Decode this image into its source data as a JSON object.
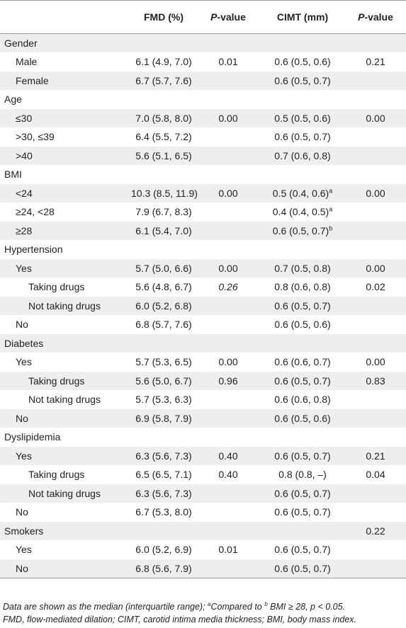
{
  "header": {
    "col0": "",
    "fmd": "FMD (%)",
    "p_fmd_italic": "P",
    "p_fmd_rest": "-value",
    "cimt": "CIMT (mm)",
    "p_cimt_italic": "P",
    "p_cimt_rest": "-value"
  },
  "rows": [
    {
      "label": "Gender",
      "level": 0,
      "fmd": "",
      "p1": "",
      "cimt": "",
      "cimt_sup": "",
      "p2": ""
    },
    {
      "label": "Male",
      "level": 1,
      "fmd": "6.1 (4.9, 7.0)",
      "p1": "0.01",
      "cimt": "0.6 (0.5, 0.6)",
      "cimt_sup": "",
      "p2": "0.21"
    },
    {
      "label": "Female",
      "level": 1,
      "fmd": "6.7 (5.7, 7.6)",
      "p1": "",
      "cimt": "0.6 (0.5, 0.7)",
      "cimt_sup": "",
      "p2": ""
    },
    {
      "label": "Age",
      "level": 0,
      "fmd": "",
      "p1": "",
      "cimt": "",
      "cimt_sup": "",
      "p2": ""
    },
    {
      "label": "≤30",
      "level": 1,
      "fmd": "7.0 (5.8, 8.0)",
      "p1": "0.00",
      "cimt": "0.5 (0.5, 0.6)",
      "cimt_sup": "",
      "p2": "0.00"
    },
    {
      "label": ">30, ≤39",
      "level": 1,
      "fmd": "6.4 (5.5, 7.2)",
      "p1": "",
      "cimt": "0.6 (0.5, 0.7)",
      "cimt_sup": "",
      "p2": ""
    },
    {
      "label": ">40",
      "level": 1,
      "fmd": "5.6 (5.1, 6.5)",
      "p1": "",
      "cimt": "0.7 (0.6, 0.8)",
      "cimt_sup": "",
      "p2": ""
    },
    {
      "label": "BMI",
      "level": 0,
      "fmd": "",
      "p1": "",
      "cimt": "",
      "cimt_sup": "",
      "p2": ""
    },
    {
      "label": "<24",
      "level": 1,
      "fmd": "10.3 (8.5, 11.9)",
      "p1": "0.00",
      "cimt": "0.5 (0.4, 0.6)",
      "cimt_sup": "a",
      "p2": "0.00"
    },
    {
      "label": "≥24, <28",
      "level": 1,
      "fmd": "7.9 (6.7, 8.3)",
      "p1": "",
      "cimt": "0.4 (0.4, 0.5)",
      "cimt_sup": "a",
      "p2": ""
    },
    {
      "label": "≥28",
      "level": 1,
      "fmd": "6.1 (5.4, 7.0)",
      "p1": "",
      "cimt": "0.6 (0.5, 0.7)",
      "cimt_sup": "b",
      "p2": ""
    },
    {
      "label": "Hypertension",
      "level": 0,
      "fmd": "",
      "p1": "",
      "cimt": "",
      "cimt_sup": "",
      "p2": ""
    },
    {
      "label": "Yes",
      "level": 1,
      "fmd": "5.7 (5.0, 6.6)",
      "p1": "0.00",
      "cimt": "0.7 (0.5, 0.8)",
      "cimt_sup": "",
      "p2": "0.00"
    },
    {
      "label": "Taking drugs",
      "level": 2,
      "fmd": "5.6 (4.8, 6.7)",
      "p1": "0.26",
      "p1_italic": true,
      "cimt": "0.8 (0.6, 0.8)",
      "cimt_sup": "",
      "p2": "0.02"
    },
    {
      "label": "Not taking drugs",
      "level": 2,
      "fmd": "6.0 (5.2, 6.8)",
      "p1": "",
      "cimt": "0.6 (0.5, 0.7)",
      "cimt_sup": "",
      "p2": ""
    },
    {
      "label": "No",
      "level": 1,
      "fmd": "6.8 (5.7, 7.6)",
      "p1": "",
      "cimt": "0.6 (0.5, 0.6)",
      "cimt_sup": "",
      "p2": ""
    },
    {
      "label": "Diabetes",
      "level": 0,
      "fmd": "",
      "p1": "",
      "cimt": "",
      "cimt_sup": "",
      "p2": ""
    },
    {
      "label": "Yes",
      "level": 1,
      "fmd": "5.7 (5.3, 6.5)",
      "p1": "0.00",
      "cimt": "0.6 (0.6, 0.7)",
      "cimt_sup": "",
      "p2": "0.00"
    },
    {
      "label": "Taking drugs",
      "level": 2,
      "fmd": "5.6 (5.0, 6.7)",
      "p1": "0.96",
      "cimt": "0.6 (0.5, 0.7)",
      "cimt_sup": "",
      "p2": "0.83"
    },
    {
      "label": "Not taking drugs",
      "level": 2,
      "fmd": "5.7 (5.3, 6.3)",
      "p1": "",
      "cimt": "0.6 (0.6, 0.8)",
      "cimt_sup": "",
      "p2": ""
    },
    {
      "label": "No",
      "level": 1,
      "fmd": "6.9 (5.8, 7.9)",
      "p1": "",
      "cimt": "0.6 (0.5, 0.6)",
      "cimt_sup": "",
      "p2": ""
    },
    {
      "label": "Dyslipidemia",
      "level": 0,
      "fmd": "",
      "p1": "",
      "cimt": "",
      "cimt_sup": "",
      "p2": ""
    },
    {
      "label": "Yes",
      "level": 1,
      "fmd": "6.3 (5.6, 7.3)",
      "p1": "0.40",
      "cimt": "0.6 (0.5, 0.7)",
      "cimt_sup": "",
      "p2": "0.21"
    },
    {
      "label": "Taking drugs",
      "level": 2,
      "fmd": "6.5 (6.5, 7.1)",
      "p1": "0.40",
      "cimt": "0.8 (0.8, –)",
      "cimt_sup": "",
      "p2": "0.04"
    },
    {
      "label": "Not taking drugs",
      "level": 2,
      "fmd": "6.3 (5.6, 7.3)",
      "p1": "",
      "cimt": "0.6 (0.5, 0.7)",
      "cimt_sup": "",
      "p2": ""
    },
    {
      "label": "No",
      "level": 1,
      "fmd": "6.7 (5.3, 8.0)",
      "p1": "",
      "cimt": "0.6 (0.5, 0.7)",
      "cimt_sup": "",
      "p2": ""
    },
    {
      "label": "Smokers",
      "level": 0,
      "fmd": "",
      "p1": "",
      "cimt": "",
      "cimt_sup": "",
      "p2": "0.22"
    },
    {
      "label": "Yes",
      "level": 1,
      "fmd": "6.0 (5.2, 6.9)",
      "p1": "0.01",
      "cimt": "0.6 (0.5, 0.7)",
      "cimt_sup": "",
      "p2": ""
    },
    {
      "label": "No",
      "level": 1,
      "fmd": "6.8 (5.6, 7.9)",
      "p1": "",
      "cimt": "0.6 (0.5, 0.7)",
      "cimt_sup": "",
      "p2": ""
    }
  ],
  "footnote": {
    "line1_a": "Data are shown as the median (interquartile range); ",
    "sup_a": "a",
    "line1_b": "Compared to ",
    "sup_b": "b",
    "line1_c": " BMI ≥ 28, p < 0.05.",
    "line2": "FMD, flow-mediated dilation; CIMT, carotid intima media thickness; BMI, body mass index."
  },
  "colors": {
    "stripe": "#eeeeee",
    "rule": "#9a9a9a",
    "text": "#222222"
  }
}
